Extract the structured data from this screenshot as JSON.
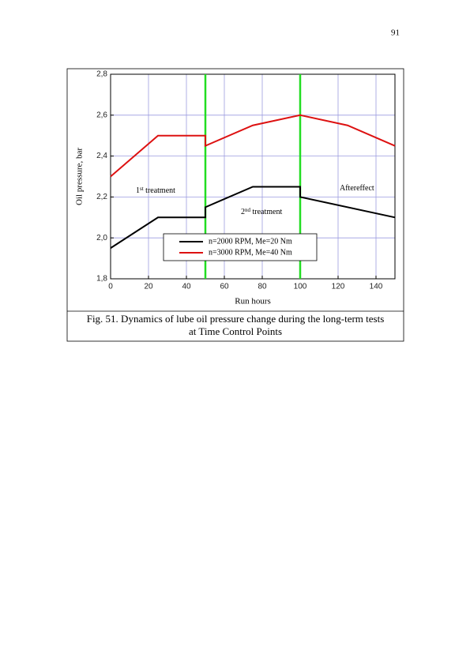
{
  "page_number": "91",
  "chart_data": {
    "type": "line",
    "xlabel": "Run hours",
    "ylabel": "Oil pressure, bar",
    "xlim": [
      0,
      150
    ],
    "xticks": [
      0,
      20,
      40,
      60,
      80,
      100,
      120,
      140
    ],
    "ylim": [
      1.8,
      2.8
    ],
    "yticks": [
      {
        "value": 1.8,
        "label": "1,8"
      },
      {
        "value": 2.0,
        "label": "2,0"
      },
      {
        "value": 2.2,
        "label": "2,2"
      },
      {
        "value": 2.4,
        "label": "2,4"
      },
      {
        "value": 2.6,
        "label": "2,6"
      },
      {
        "value": 2.8,
        "label": "2,8"
      }
    ],
    "grid": true,
    "grid_color": "#9c9ce0",
    "vlines": [
      50,
      100
    ],
    "vline_color": "#22dd22",
    "series": [
      {
        "name": "n=2000 RPM, Me=20 Nm",
        "color": "#000000",
        "x": [
          0,
          25,
          50,
          50,
          75,
          100,
          100,
          150
        ],
        "values": [
          1.95,
          2.1,
          2.1,
          2.15,
          2.25,
          2.25,
          2.2,
          2.1
        ]
      },
      {
        "name": "n=3000 RPM, Me=40 Nm",
        "color": "#dd1111",
        "x": [
          0,
          25,
          50,
          50,
          75,
          100,
          125,
          150
        ],
        "values": [
          2.3,
          2.5,
          2.5,
          2.45,
          2.55,
          2.6,
          2.55,
          2.45
        ]
      }
    ],
    "annotations": [
      [
        "1",
        "st",
        " treatment"
      ],
      [
        "2",
        "nd",
        " treatment"
      ],
      [
        "Aftereffect"
      ]
    ]
  },
  "caption": [
    "Fig. 51. Dynamics of lube oil pressure change during the long-term tests",
    "at Time Control Points"
  ]
}
